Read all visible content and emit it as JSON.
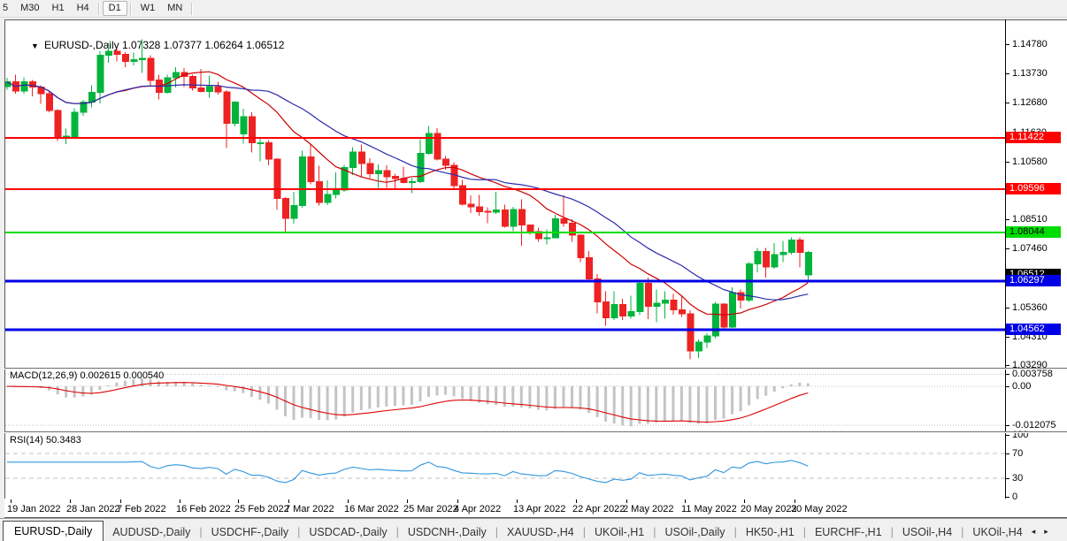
{
  "toolbar": {
    "timeframes": [
      "5",
      "M30",
      "H1",
      "H4",
      "D1",
      "W1",
      "MN"
    ],
    "active": "D1"
  },
  "window": {
    "dropdown_icon": "▼",
    "title_symbol": "EURUSD-,Daily",
    "title_ohlc": "1.07328 1.07377 1.06264 1.06512"
  },
  "chart_data": {
    "type": "candlestick",
    "symbol": "EURUSD-",
    "timeframe": "Daily",
    "last_bar": {
      "open": 1.07328,
      "high": 1.07377,
      "low": 1.06264,
      "close": 1.06512
    },
    "price_axis": {
      "max": 1.15476,
      "min": 1.03226,
      "ticks": [
        {
          "label": "1.14780",
          "value": 1.1478
        },
        {
          "label": "1.13730",
          "value": 1.1373
        },
        {
          "label": "1.12680",
          "value": 1.1268
        },
        {
          "label": "1.11630",
          "value": 1.1163
        },
        {
          "label": "1.10580",
          "value": 1.1058
        },
        {
          "label": "1.08510",
          "value": 1.0851
        },
        {
          "label": "1.07460",
          "value": 1.0746
        },
        {
          "label": "1.05360",
          "value": 1.0536
        },
        {
          "label": "1.04310",
          "value": 1.0431
        },
        {
          "label": "1.03290",
          "value": 1.0329
        }
      ]
    },
    "hlines": [
      {
        "price": 1.11422,
        "label": "1.11422",
        "color": "#ff0000",
        "width": 2,
        "fg": "#ffffff"
      },
      {
        "price": 1.09596,
        "label": "1.09596",
        "color": "#ff0000",
        "width": 2,
        "fg": "#ffffff"
      },
      {
        "price": 1.08044,
        "label": "1.08044",
        "color": "#00dd00",
        "width": 2,
        "fg": "#000000"
      },
      {
        "price": 1.06297,
        "label": "1.06297",
        "color": "#0000e6",
        "width": 3,
        "fg": "#ffffff"
      },
      {
        "price": 1.04562,
        "label": "1.04562",
        "color": "#0000e6",
        "width": 3,
        "fg": "#ffffff"
      }
    ],
    "current_price_tag": {
      "label": "1.06512",
      "price": 1.06512,
      "bg": "#000000",
      "fg": "#ffffff"
    },
    "colors": {
      "bull": "#00b43c",
      "bear": "#ee2222",
      "ma_fast": "#cc0000",
      "ma_slow": "#2a2aae",
      "macd_hist": "#c4c4c4",
      "macd_signal": "#dd0000",
      "rsi": "#2f96dd",
      "level_dash": "#c0c0c0"
    },
    "moving_averages": [
      {
        "type": "sma",
        "period": 14,
        "color_key": "ma_fast"
      },
      {
        "type": "sma",
        "period": 24,
        "color_key": "ma_slow"
      }
    ],
    "last_candle_render": "bull-colored",
    "candles": [
      [
        1.1326,
        1.1358,
        1.1315,
        1.1343
      ],
      [
        1.1343,
        1.1369,
        1.13,
        1.131
      ],
      [
        1.131,
        1.136,
        1.1301,
        1.1343
      ],
      [
        1.1343,
        1.1349,
        1.1291,
        1.1325
      ],
      [
        1.1325,
        1.1331,
        1.1264,
        1.1301
      ],
      [
        1.1301,
        1.131,
        1.1235,
        1.124
      ],
      [
        1.124,
        1.1245,
        1.1131,
        1.1144
      ],
      [
        1.1144,
        1.1175,
        1.1121,
        1.1148
      ],
      [
        1.1148,
        1.1248,
        1.1141,
        1.1234
      ],
      [
        1.1234,
        1.1279,
        1.1221,
        1.1271
      ],
      [
        1.1271,
        1.133,
        1.1252,
        1.1305
      ],
      [
        1.1305,
        1.1452,
        1.1266,
        1.1438
      ],
      [
        1.1438,
        1.1483,
        1.1411,
        1.1453
      ],
      [
        1.1453,
        1.1462,
        1.1417,
        1.1442
      ],
      [
        1.1442,
        1.1449,
        1.1395,
        1.1416
      ],
      [
        1.1416,
        1.1448,
        1.1402,
        1.1423
      ],
      [
        1.1423,
        1.1495,
        1.1375,
        1.1428
      ],
      [
        1.1428,
        1.1439,
        1.133,
        1.1349
      ],
      [
        1.1349,
        1.1369,
        1.128,
        1.1306
      ],
      [
        1.1306,
        1.1368,
        1.1301,
        1.1358
      ],
      [
        1.1358,
        1.1395,
        1.1323,
        1.1376
      ],
      [
        1.1376,
        1.1393,
        1.1324,
        1.1363
      ],
      [
        1.1363,
        1.1369,
        1.1312,
        1.1321
      ],
      [
        1.1321,
        1.139,
        1.1305,
        1.1308
      ],
      [
        1.1308,
        1.1366,
        1.1287,
        1.1326
      ],
      [
        1.1326,
        1.1343,
        1.1297,
        1.1307
      ],
      [
        1.1307,
        1.1314,
        1.1106,
        1.1194
      ],
      [
        1.1194,
        1.1274,
        1.1184,
        1.127
      ],
      [
        1.1157,
        1.1247,
        1.1122,
        1.1219
      ],
      [
        1.1219,
        1.1234,
        1.109,
        1.1125
      ],
      [
        1.1125,
        1.1141,
        1.1058,
        1.1125
      ],
      [
        1.1125,
        1.1135,
        1.1045,
        1.1066
      ],
      [
        1.1066,
        1.107,
        1.0885,
        1.0926
      ],
      [
        1.0926,
        1.0931,
        1.0806,
        1.0854
      ],
      [
        1.0854,
        1.095,
        1.0836,
        1.0901
      ],
      [
        1.0901,
        1.1096,
        1.0893,
        1.1075
      ],
      [
        1.1075,
        1.1121,
        1.0976,
        1.0985
      ],
      [
        1.0985,
        1.1042,
        1.0901,
        1.0911
      ],
      [
        1.0911,
        1.0991,
        1.0902,
        1.094
      ],
      [
        1.094,
        1.1019,
        1.0925,
        1.0955
      ],
      [
        1.0955,
        1.1046,
        1.095,
        1.1036
      ],
      [
        1.1036,
        1.1109,
        1.1009,
        1.1091
      ],
      [
        1.1091,
        1.1119,
        1.1003,
        1.1051
      ],
      [
        1.1051,
        1.1069,
        1.0999,
        1.1015
      ],
      [
        1.1015,
        1.1047,
        1.0963,
        1.1026
      ],
      [
        1.1026,
        1.1044,
        1.0963,
        1.1004
      ],
      [
        1.1004,
        1.1014,
        1.0961,
        1.0997
      ],
      [
        1.0997,
        1.1039,
        1.0979,
        1.0983
      ],
      [
        1.0983,
        1.0999,
        1.0944,
        1.0986
      ],
      [
        1.0986,
        1.1137,
        1.0981,
        1.1087
      ],
      [
        1.1087,
        1.1185,
        1.1083,
        1.1158
      ],
      [
        1.1158,
        1.1177,
        1.1061,
        1.1067
      ],
      [
        1.1067,
        1.1077,
        1.1028,
        1.1045
      ],
      [
        1.1045,
        1.1055,
        1.096,
        1.0972
      ],
      [
        1.0972,
        1.0992,
        1.09,
        1.0905
      ],
      [
        1.0905,
        1.0937,
        1.0874,
        1.0895
      ],
      [
        1.0895,
        1.0938,
        1.0864,
        1.0879
      ],
      [
        1.0879,
        1.0894,
        1.0837,
        1.0876
      ],
      [
        1.0876,
        1.095,
        1.0871,
        1.0884
      ],
      [
        1.0884,
        1.0904,
        1.0821,
        1.0826
      ],
      [
        1.0826,
        1.0896,
        1.0809,
        1.0886
      ],
      [
        1.0886,
        1.0923,
        1.0757,
        1.083
      ],
      [
        1.083,
        1.0832,
        1.0796,
        1.0807
      ],
      [
        1.0807,
        1.0821,
        1.077,
        1.0781
      ],
      [
        1.0781,
        1.0815,
        1.0761,
        1.0785
      ],
      [
        1.0785,
        1.0867,
        1.0784,
        1.0853
      ],
      [
        1.0853,
        1.0936,
        1.0824,
        1.0837
      ],
      [
        1.0837,
        1.0852,
        1.077,
        1.0794
      ],
      [
        1.0794,
        1.0797,
        1.0697,
        1.0713
      ],
      [
        1.0713,
        1.0738,
        1.0635,
        1.0637
      ],
      [
        1.0637,
        1.0655,
        1.0514,
        1.0555
      ],
      [
        1.0555,
        1.0594,
        1.047,
        1.0498
      ],
      [
        1.0498,
        1.0593,
        1.049,
        1.0545
      ],
      [
        1.0545,
        1.0567,
        1.0491,
        1.0505
      ],
      [
        1.0505,
        1.0577,
        1.0495,
        1.052
      ],
      [
        1.052,
        1.0632,
        1.0507,
        1.0622
      ],
      [
        1.0622,
        1.0642,
        1.0493,
        1.054
      ],
      [
        1.054,
        1.0599,
        1.0483,
        1.0551
      ],
      [
        1.0551,
        1.0593,
        1.0495,
        1.0561
      ],
      [
        1.0561,
        1.0584,
        1.0509,
        1.0527
      ],
      [
        1.0527,
        1.0578,
        1.0501,
        1.0513
      ],
      [
        1.0513,
        1.0525,
        1.0349,
        1.0379
      ],
      [
        1.0379,
        1.042,
        1.0354,
        1.0411
      ],
      [
        1.0411,
        1.0443,
        1.039,
        1.0434
      ],
      [
        1.0434,
        1.0556,
        1.0424,
        1.0547
      ],
      [
        1.0547,
        1.0551,
        1.0459,
        1.0465
      ],
      [
        1.0465,
        1.0607,
        1.0462,
        1.0588
      ],
      [
        1.0588,
        1.0599,
        1.0532,
        1.0561
      ],
      [
        1.0561,
        1.0697,
        1.0556,
        1.0691
      ],
      [
        1.0691,
        1.0748,
        1.0661,
        1.0735
      ],
      [
        1.0735,
        1.0749,
        1.0642,
        1.068
      ],
      [
        1.068,
        1.0765,
        1.0674,
        1.0724
      ],
      [
        1.0724,
        1.0773,
        1.0697,
        1.0733
      ],
      [
        1.0733,
        1.0787,
        1.0725,
        1.0777
      ],
      [
        1.0777,
        1.0787,
        1.0678,
        1.0733
      ],
      [
        1.0733,
        1.0738,
        1.0626,
        1.0651
      ]
    ],
    "date_ticks": [
      {
        "i": 0,
        "label": "19 Jan 2022"
      },
      {
        "i": 7,
        "label": "28 Jan 2022"
      },
      {
        "i": 13,
        "label": "7 Feb 2022"
      },
      {
        "i": 20,
        "label": "16 Feb 2022"
      },
      {
        "i": 27,
        "label": "25 Feb 2022"
      },
      {
        "i": 33,
        "label": "7 Mar 2022"
      },
      {
        "i": 40,
        "label": "16 Mar 2022"
      },
      {
        "i": 47,
        "label": "25 Mar 2022"
      },
      {
        "i": 53,
        "label": "4 Apr 2022"
      },
      {
        "i": 60,
        "label": "13 Apr 2022"
      },
      {
        "i": 67,
        "label": "22 Apr 2022"
      },
      {
        "i": 73,
        "label": "2 May 2022"
      },
      {
        "i": 80,
        "label": "11 May 2022"
      },
      {
        "i": 87,
        "label": "20 May 2022"
      },
      {
        "i": 93,
        "label": "30 May 2022"
      }
    ],
    "macd": {
      "label_full": "MACD(12,26,9) 0.002615 0.000540",
      "params": [
        12,
        26,
        9
      ],
      "value": 0.002615,
      "signal_value": 0.00054,
      "axis_ticks": [
        {
          "label": "0.003758",
          "value": 0.003758
        },
        {
          "label": "0.00",
          "value": 0
        },
        {
          "label": "-0.012075",
          "value": -0.012075
        }
      ]
    },
    "rsi": {
      "label_full": "RSI(14) 50.3483",
      "period": 14,
      "value": 50.3483,
      "levels": [
        70,
        30
      ],
      "axis_ticks": [
        {
          "label": "100",
          "value": 100
        },
        {
          "label": "70",
          "value": 70
        },
        {
          "label": "30",
          "value": 30
        },
        {
          "label": "0",
          "value": 0
        }
      ]
    }
  },
  "tabs": {
    "items": [
      {
        "label": "EURUSD-,Daily",
        "active": true
      },
      {
        "label": "AUDUSD-,Daily",
        "active": false
      },
      {
        "label": "USDCHF-,Daily",
        "active": false
      },
      {
        "label": "USDCAD-,Daily",
        "active": false
      },
      {
        "label": "USDCNH-,Daily",
        "active": false
      },
      {
        "label": "XAUUSD-,H4",
        "active": false
      },
      {
        "label": "UKOil-,H1",
        "active": false
      },
      {
        "label": "USOil-,Daily",
        "active": false
      },
      {
        "label": "HK50-,H1",
        "active": false
      },
      {
        "label": "EURCHF-,H1",
        "active": false
      },
      {
        "label": "USOil-,H4",
        "active": false
      },
      {
        "label": "UKOil-,H4",
        "active": false
      }
    ],
    "scroll_left_icon": "◂",
    "scroll_right_icon": "▸"
  }
}
